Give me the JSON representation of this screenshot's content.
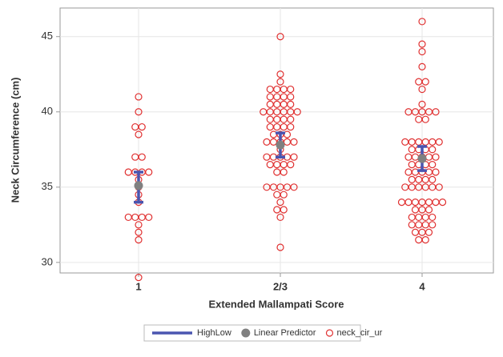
{
  "chart_data": {
    "type": "scatter",
    "x_label": "Extended Mallampati Score",
    "y_label": "Neck Circumference (cm)",
    "categories": [
      "1",
      "2/3",
      "4"
    ],
    "ylim": [
      29.3,
      46.9
    ],
    "yticks": [
      30,
      35,
      40,
      45
    ],
    "grid": true,
    "legend": "bottom",
    "series": [
      {
        "name": "HighLow",
        "type": "highlow",
        "color": "#4a55b0",
        "low": [
          34,
          37,
          36.1
        ],
        "high": [
          36,
          38.6,
          37.7
        ]
      },
      {
        "name": "Linear Predictor",
        "type": "point",
        "color": "#808080",
        "values": [
          35.1,
          37.8,
          36.9
        ]
      },
      {
        "name": "neck_cir_ur",
        "type": "open-circle",
        "color": "#e03030",
        "points": [
          [
            41,
            40,
            39,
            39,
            38.5,
            37,
            37,
            36,
            36,
            36,
            36,
            35.5,
            35,
            34.5,
            34,
            33,
            33,
            33,
            33,
            32.5,
            32,
            31.5,
            29
          ],
          [
            45,
            42.5,
            42,
            41.5,
            41.5,
            41.5,
            41.5,
            41,
            41,
            41,
            41,
            40.5,
            40.5,
            40.5,
            40.5,
            40,
            40,
            40,
            40,
            40,
            40,
            39.5,
            39.5,
            39.5,
            39.5,
            39,
            39,
            39,
            39,
            38.5,
            38.5,
            38.5,
            38,
            38,
            38,
            38,
            38,
            37.5,
            37,
            37,
            37,
            37,
            37,
            36.5,
            36.5,
            36.5,
            36.5,
            36,
            36,
            35,
            35,
            35,
            35,
            35,
            34.5,
            34.5,
            34,
            33.5,
            33.5,
            33,
            31
          ],
          [
            46,
            44.5,
            44,
            43,
            42,
            42,
            41.5,
            40.5,
            40,
            40,
            40,
            40,
            40,
            39.5,
            39.5,
            38,
            38,
            38,
            38,
            38,
            38,
            37.5,
            37.5,
            37.5,
            37.5,
            37,
            37,
            37,
            37,
            37,
            36.5,
            36.5,
            36.5,
            36.5,
            36,
            36,
            36,
            36,
            36,
            35.5,
            35.5,
            35.5,
            35.5,
            35,
            35,
            35,
            35,
            35,
            35,
            34,
            34,
            34,
            34,
            34,
            34,
            34,
            33.5,
            33.5,
            33.5,
            33,
            33,
            33,
            33,
            32.5,
            32.5,
            32.5,
            32.5,
            32,
            32,
            32,
            31.5,
            31.5
          ]
        ]
      }
    ]
  }
}
